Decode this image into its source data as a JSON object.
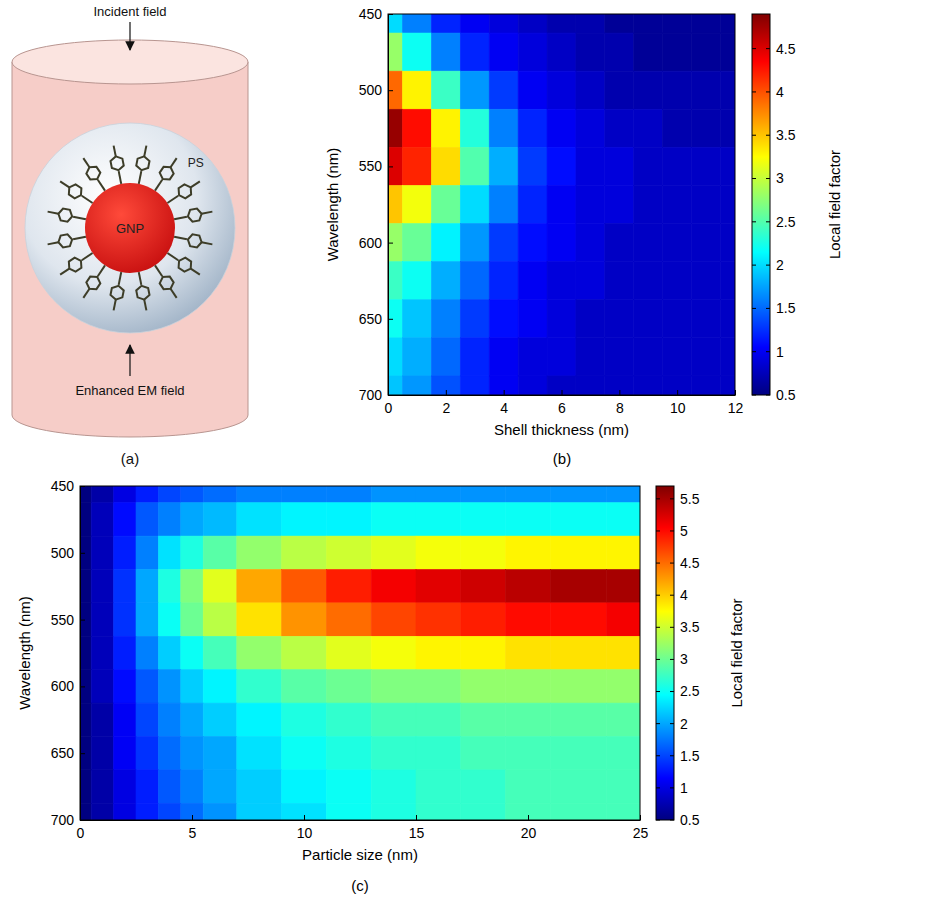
{
  "diagram": {
    "panel_label": "(a)",
    "top_label": "Incident field",
    "bottom_label": "Enhanced EM field",
    "core_label": "GNP",
    "shell_label": "PS"
  },
  "chart_data": [
    {
      "type": "heatmap",
      "panel_label": "(b)",
      "x_label": "Shell thickness (nm)",
      "y_label": "Wavelength (nm)",
      "x": [
        0,
        1,
        2,
        3,
        4,
        5,
        6,
        7,
        8,
        9,
        10,
        11,
        12
      ],
      "y": [
        450,
        475,
        500,
        525,
        550,
        575,
        600,
        625,
        650,
        675,
        700
      ],
      "values": [
        [
          2.0,
          1.6,
          1.2,
          1.0,
          0.9,
          0.8,
          0.7,
          0.7,
          0.6,
          0.6,
          0.6,
          0.6,
          0.6
        ],
        [
          2.8,
          2.2,
          1.6,
          1.2,
          1.0,
          0.9,
          0.8,
          0.7,
          0.7,
          0.6,
          0.6,
          0.6,
          0.6
        ],
        [
          3.9,
          3.3,
          2.4,
          1.7,
          1.3,
          1.0,
          0.9,
          0.8,
          0.7,
          0.7,
          0.7,
          0.7,
          0.7
        ],
        [
          4.8,
          4.3,
          3.3,
          2.3,
          1.6,
          1.2,
          1.0,
          0.9,
          0.8,
          0.8,
          0.7,
          0.7,
          0.7
        ],
        [
          4.5,
          4.2,
          3.4,
          2.5,
          1.8,
          1.3,
          1.1,
          0.9,
          0.9,
          0.8,
          0.8,
          0.8,
          0.8
        ],
        [
          3.5,
          3.2,
          2.6,
          2.0,
          1.6,
          1.2,
          1.0,
          0.9,
          0.9,
          0.8,
          0.8,
          0.8,
          0.8
        ],
        [
          2.8,
          2.6,
          2.1,
          1.7,
          1.3,
          1.1,
          1.0,
          0.9,
          0.8,
          0.8,
          0.8,
          0.8,
          0.8
        ],
        [
          2.4,
          2.2,
          1.8,
          1.5,
          1.2,
          1.0,
          0.9,
          0.9,
          0.8,
          0.8,
          0.8,
          0.8,
          0.8
        ],
        [
          2.2,
          1.9,
          1.6,
          1.3,
          1.1,
          1.0,
          0.9,
          0.8,
          0.8,
          0.8,
          0.8,
          0.8,
          0.8
        ],
        [
          2.0,
          1.8,
          1.5,
          1.2,
          1.0,
          0.9,
          0.9,
          0.8,
          0.8,
          0.8,
          0.8,
          0.8,
          0.8
        ],
        [
          1.9,
          1.7,
          1.4,
          1.2,
          1.0,
          0.9,
          0.8,
          0.8,
          0.8,
          0.8,
          0.8,
          0.8,
          0.8
        ]
      ],
      "xlim": [
        0,
        12
      ],
      "xticks": [
        0,
        2,
        4,
        6,
        8,
        10,
        12
      ],
      "ylim": [
        700,
        450
      ],
      "yticks": [
        450,
        500,
        550,
        600,
        650,
        700
      ],
      "colorbar": {
        "label": "Local field factor",
        "lim": [
          0.5,
          4.9
        ],
        "ticks": [
          0.5,
          1,
          1.5,
          2,
          2.5,
          3,
          3.5,
          4,
          4.5
        ]
      }
    },
    {
      "type": "heatmap",
      "panel_label": "(c)",
      "x_label": "Particle size (nm)",
      "y_label": "Wavelength (nm)",
      "x": [
        0,
        1,
        2,
        3,
        4,
        5,
        6,
        8,
        10,
        12,
        14,
        16,
        18,
        20,
        22,
        25
      ],
      "y": [
        450,
        475,
        500,
        525,
        550,
        575,
        600,
        625,
        650,
        675,
        700
      ],
      "values": [
        [
          0.5,
          0.7,
          1.0,
          1.3,
          1.5,
          1.6,
          1.7,
          1.8,
          1.8,
          1.8,
          1.9,
          1.9,
          1.9,
          1.9,
          1.9,
          1.9
        ],
        [
          0.5,
          0.8,
          1.2,
          1.6,
          1.8,
          2.0,
          2.1,
          2.3,
          2.4,
          2.4,
          2.5,
          2.5,
          2.5,
          2.5,
          2.5,
          2.5
        ],
        [
          0.5,
          0.8,
          1.3,
          1.8,
          2.3,
          2.6,
          2.9,
          3.2,
          3.4,
          3.5,
          3.6,
          3.7,
          3.7,
          3.8,
          3.8,
          3.8
        ],
        [
          0.5,
          0.8,
          1.4,
          2.0,
          2.6,
          3.1,
          3.6,
          4.2,
          4.6,
          4.9,
          5.1,
          5.2,
          5.3,
          5.4,
          5.5,
          5.5
        ],
        [
          0.5,
          0.8,
          1.4,
          2.0,
          2.5,
          3.0,
          3.4,
          3.9,
          4.3,
          4.5,
          4.7,
          4.8,
          4.9,
          5.0,
          5.0,
          5.1
        ],
        [
          0.5,
          0.8,
          1.3,
          1.8,
          2.2,
          2.5,
          2.8,
          3.2,
          3.4,
          3.6,
          3.7,
          3.8,
          3.8,
          3.9,
          3.9,
          3.9
        ],
        [
          0.5,
          0.8,
          1.2,
          1.6,
          1.9,
          2.2,
          2.4,
          2.7,
          2.9,
          3.0,
          3.1,
          3.1,
          3.2,
          3.2,
          3.2,
          3.2
        ],
        [
          0.5,
          0.7,
          1.1,
          1.5,
          1.8,
          2.0,
          2.2,
          2.4,
          2.6,
          2.7,
          2.8,
          2.8,
          2.9,
          2.9,
          2.9,
          2.9
        ],
        [
          0.5,
          0.7,
          1.1,
          1.4,
          1.7,
          1.9,
          2.0,
          2.3,
          2.5,
          2.6,
          2.7,
          2.7,
          2.8,
          2.8,
          2.8,
          2.8
        ],
        [
          0.5,
          0.7,
          1.0,
          1.3,
          1.6,
          1.8,
          2.0,
          2.2,
          2.4,
          2.5,
          2.6,
          2.7,
          2.7,
          2.8,
          2.8,
          2.8
        ],
        [
          0.5,
          0.7,
          1.0,
          1.3,
          1.5,
          1.7,
          1.9,
          2.2,
          2.3,
          2.5,
          2.6,
          2.7,
          2.7,
          2.8,
          2.8,
          2.8
        ]
      ],
      "xlim": [
        0,
        25
      ],
      "xticks": [
        0,
        5,
        10,
        15,
        20,
        25
      ],
      "ylim": [
        700,
        450
      ],
      "yticks": [
        450,
        500,
        550,
        600,
        650,
        700
      ],
      "colorbar": {
        "label": "Local field factor",
        "lim": [
          0.5,
          5.7
        ],
        "ticks": [
          0.5,
          1,
          1.5,
          2,
          2.5,
          3,
          3.5,
          4,
          4.5,
          5,
          5.5
        ]
      }
    }
  ]
}
